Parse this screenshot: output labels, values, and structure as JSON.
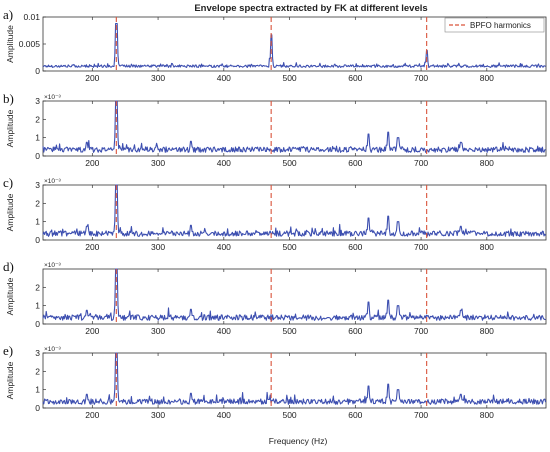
{
  "figure": {
    "title": "Envelope spectra extracted by FK at different levels",
    "xlabel": "Frequency (Hz)",
    "legend_label": "BPFO harmonics",
    "colors": {
      "spectrum": "#3d4fb0",
      "harmonic": "#d9533a",
      "axis": "#333333"
    }
  },
  "chart_data": [
    {
      "type": "line",
      "panel_label": "a)",
      "ylabel": "Amplitude",
      "exponent_label": "",
      "xlim": [
        125,
        890
      ],
      "ylim": [
        0,
        0.01
      ],
      "xticks": [
        200,
        300,
        400,
        500,
        600,
        700,
        800
      ],
      "yticks": [
        0,
        0.005,
        0.01
      ],
      "ytick_labels": [
        "0",
        "0.005",
        "0.01"
      ],
      "bpfo_harmonics": [
        236.5,
        472,
        708.5
      ],
      "peaks": [
        [
          236.5,
          0.0088
        ],
        [
          472,
          0.0067
        ],
        [
          708.5,
          0.0038
        ]
      ],
      "baseline": 0.0009,
      "noise": 0.0004,
      "legend": "top-right"
    },
    {
      "type": "line",
      "panel_label": "b)",
      "ylabel": "Amplitude",
      "exponent_label": "×10⁻³",
      "xlim": [
        125,
        890
      ],
      "ylim": [
        0,
        3
      ],
      "xticks": [
        200,
        300,
        400,
        500,
        600,
        700,
        800
      ],
      "yticks": [
        0,
        1,
        2,
        3
      ],
      "ytick_labels": [
        "0",
        "1",
        "2",
        "3"
      ],
      "bpfo_harmonics": [
        236.5,
        472,
        708.5
      ],
      "peaks": [
        [
          236.5,
          3.0
        ],
        [
          620,
          1.2
        ],
        [
          650,
          1.3
        ],
        [
          665,
          1.0
        ],
        [
          192,
          0.75
        ],
        [
          350,
          0.8
        ],
        [
          760,
          0.75
        ]
      ],
      "baseline": 0.35,
      "noise": 0.25
    },
    {
      "type": "line",
      "panel_label": "c)",
      "ylabel": "Amplitude",
      "exponent_label": "×10⁻³",
      "xlim": [
        125,
        890
      ],
      "ylim": [
        0,
        3
      ],
      "xticks": [
        200,
        300,
        400,
        500,
        600,
        700,
        800
      ],
      "yticks": [
        0,
        1,
        2,
        3
      ],
      "ytick_labels": [
        "0",
        "1",
        "2",
        "3"
      ],
      "bpfo_harmonics": [
        236.5,
        472,
        708.5
      ],
      "peaks": [
        [
          236.5,
          3.0
        ],
        [
          620,
          1.2
        ],
        [
          650,
          1.3
        ],
        [
          665,
          1.0
        ],
        [
          192,
          0.75
        ],
        [
          350,
          0.8
        ],
        [
          760,
          0.75
        ]
      ],
      "baseline": 0.35,
      "noise": 0.25
    },
    {
      "type": "line",
      "panel_label": "d)",
      "ylabel": "Amplitude",
      "exponent_label": "×10⁻³",
      "xlim": [
        125,
        890
      ],
      "ylim": [
        0,
        3
      ],
      "xticks": [
        200,
        300,
        400,
        500,
        600,
        700,
        800
      ],
      "yticks": [
        0,
        1,
        2
      ],
      "ytick_labels": [
        "0",
        "1",
        "2"
      ],
      "bpfo_harmonics": [
        236.5,
        472,
        708.5
      ],
      "peaks": [
        [
          236.5,
          3.0
        ],
        [
          620,
          1.2
        ],
        [
          650,
          1.3
        ],
        [
          665,
          1.0
        ],
        [
          192,
          0.75
        ],
        [
          350,
          0.8
        ],
        [
          760,
          0.75
        ]
      ],
      "baseline": 0.35,
      "noise": 0.25
    },
    {
      "type": "line",
      "panel_label": "e)",
      "ylabel": "Amplitude",
      "exponent_label": "×10⁻³",
      "xlim": [
        125,
        890
      ],
      "ylim": [
        0,
        3
      ],
      "xticks": [
        200,
        300,
        400,
        500,
        600,
        700,
        800
      ],
      "yticks": [
        0,
        1,
        2,
        3
      ],
      "ytick_labels": [
        "0",
        "1",
        "2",
        "3"
      ],
      "bpfo_harmonics": [
        236.5,
        472,
        708.5
      ],
      "peaks": [
        [
          236.5,
          3.0
        ],
        [
          620,
          1.2
        ],
        [
          650,
          1.3
        ],
        [
          665,
          1.0
        ],
        [
          192,
          0.75
        ],
        [
          350,
          0.8
        ],
        [
          760,
          0.75
        ]
      ],
      "baseline": 0.35,
      "noise": 0.25
    }
  ]
}
